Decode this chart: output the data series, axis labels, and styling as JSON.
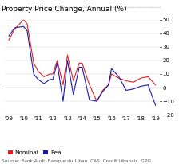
{
  "title": "Property Price Change, Annual (%)",
  "source": "Source: Bank Audi, Banque du Liban, CAS, Credit Libanais, GPG",
  "nominal_color": "#e02020",
  "real_color": "#1a1aaa",
  "ylim": [
    -20,
    50
  ],
  "yticks": [
    -20,
    -10,
    0,
    10,
    20,
    30,
    40,
    50
  ],
  "background_color": "#ffffff",
  "grid_color": "#cccccc",
  "title_fontsize": 6.5,
  "axis_fontsize": 5.0,
  "legend_fontsize": 5.2,
  "source_fontsize": 4.2,
  "nominal_x": [
    2009.0,
    2009.4,
    2010.0,
    2010.25,
    2010.7,
    2011.0,
    2011.4,
    2011.8,
    2012.0,
    2012.3,
    2012.7,
    2013.0,
    2013.4,
    2013.8,
    2014.0,
    2014.5,
    2015.0,
    2015.4,
    2015.8,
    2016.0,
    2016.5,
    2017.0,
    2017.5,
    2018.0,
    2018.5,
    2019.0
  ],
  "nominal_y": [
    35,
    43,
    50,
    47,
    18,
    12,
    8,
    10,
    10,
    20,
    2,
    24,
    5,
    18,
    18,
    2,
    -10,
    -2,
    2,
    10,
    7,
    5,
    4,
    7,
    8,
    2
  ],
  "real_x": [
    2009.0,
    2009.4,
    2010.0,
    2010.25,
    2010.7,
    2011.0,
    2011.4,
    2011.8,
    2012.0,
    2012.3,
    2012.7,
    2013.0,
    2013.4,
    2013.8,
    2014.0,
    2014.5,
    2015.0,
    2015.4,
    2015.8,
    2016.0,
    2016.5,
    2017.0,
    2017.5,
    2018.0,
    2018.5,
    2019.0
  ],
  "real_y": [
    38,
    44,
    45,
    42,
    10,
    6,
    3,
    6,
    6,
    18,
    -10,
    20,
    -5,
    15,
    15,
    -9,
    -10,
    -3,
    2,
    14,
    8,
    -2,
    -1,
    1,
    2,
    -13
  ]
}
